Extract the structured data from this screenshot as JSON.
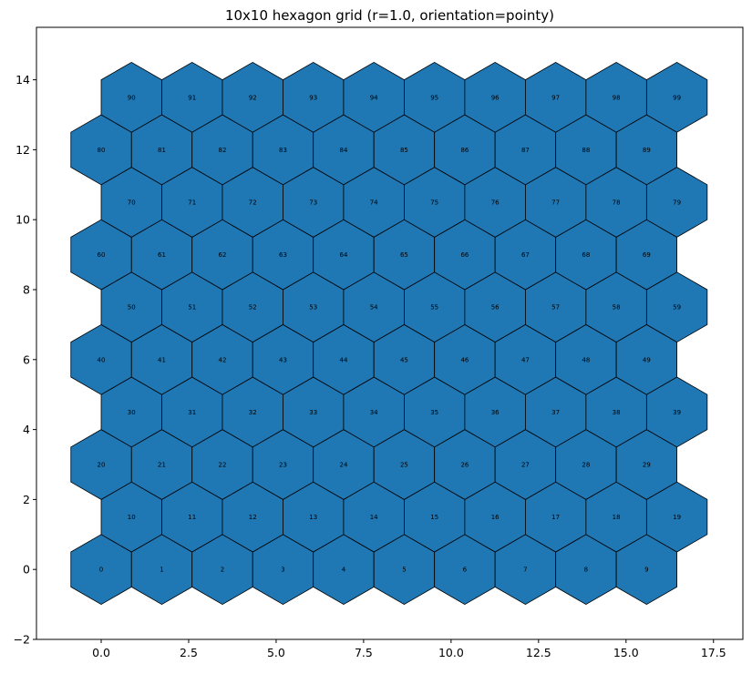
{
  "chart_data": {
    "type": "scatter",
    "title": "10x10 hexagon grid (r=1.0, orientation=pointy)",
    "xlabel": "",
    "ylabel": "",
    "xlim": [
      -1.85,
      18.34
    ],
    "ylim": [
      -2,
      15.5
    ],
    "xticks": [
      0.0,
      2.5,
      5.0,
      7.5,
      10.0,
      12.5,
      15.0,
      17.5
    ],
    "xtick_labels": [
      "0.0",
      "2.5",
      "5.0",
      "7.5",
      "10.0",
      "12.5",
      "15.0",
      "17.5"
    ],
    "yticks": [
      -2,
      0,
      2,
      4,
      6,
      8,
      10,
      12,
      14
    ],
    "ytick_labels": [
      "−2",
      "0",
      "2",
      "4",
      "6",
      "8",
      "10",
      "12",
      "14"
    ],
    "grid": false,
    "hex_grid": {
      "rows": 10,
      "cols": 10,
      "radius": 1.0,
      "orientation": "pointy",
      "fill_color": "#1f77b4",
      "edge_color": "#000000"
    },
    "cells": [
      {
        "id": "0",
        "x": 0.0,
        "y": 0.0
      },
      {
        "id": "1",
        "x": 1.732,
        "y": 0.0
      },
      {
        "id": "2",
        "x": 3.464,
        "y": 0.0
      },
      {
        "id": "3",
        "x": 5.196,
        "y": 0.0
      },
      {
        "id": "4",
        "x": 6.928,
        "y": 0.0
      },
      {
        "id": "5",
        "x": 8.66,
        "y": 0.0
      },
      {
        "id": "6",
        "x": 10.392,
        "y": 0.0
      },
      {
        "id": "7",
        "x": 12.124,
        "y": 0.0
      },
      {
        "id": "8",
        "x": 13.856,
        "y": 0.0
      },
      {
        "id": "9",
        "x": 15.588,
        "y": 0.0
      },
      {
        "id": "10",
        "x": 0.866,
        "y": 1.5
      },
      {
        "id": "11",
        "x": 2.598,
        "y": 1.5
      },
      {
        "id": "12",
        "x": 4.33,
        "y": 1.5
      },
      {
        "id": "13",
        "x": 6.062,
        "y": 1.5
      },
      {
        "id": "14",
        "x": 7.794,
        "y": 1.5
      },
      {
        "id": "15",
        "x": 9.526,
        "y": 1.5
      },
      {
        "id": "16",
        "x": 11.258,
        "y": 1.5
      },
      {
        "id": "17",
        "x": 12.99,
        "y": 1.5
      },
      {
        "id": "18",
        "x": 14.722,
        "y": 1.5
      },
      {
        "id": "19",
        "x": 16.454,
        "y": 1.5
      },
      {
        "id": "20",
        "x": 0.0,
        "y": 3.0
      },
      {
        "id": "21",
        "x": 1.732,
        "y": 3.0
      },
      {
        "id": "22",
        "x": 3.464,
        "y": 3.0
      },
      {
        "id": "23",
        "x": 5.196,
        "y": 3.0
      },
      {
        "id": "24",
        "x": 6.928,
        "y": 3.0
      },
      {
        "id": "25",
        "x": 8.66,
        "y": 3.0
      },
      {
        "id": "26",
        "x": 10.392,
        "y": 3.0
      },
      {
        "id": "27",
        "x": 12.124,
        "y": 3.0
      },
      {
        "id": "28",
        "x": 13.856,
        "y": 3.0
      },
      {
        "id": "29",
        "x": 15.588,
        "y": 3.0
      },
      {
        "id": "30",
        "x": 0.866,
        "y": 4.5
      },
      {
        "id": "31",
        "x": 2.598,
        "y": 4.5
      },
      {
        "id": "32",
        "x": 4.33,
        "y": 4.5
      },
      {
        "id": "33",
        "x": 6.062,
        "y": 4.5
      },
      {
        "id": "34",
        "x": 7.794,
        "y": 4.5
      },
      {
        "id": "35",
        "x": 9.526,
        "y": 4.5
      },
      {
        "id": "36",
        "x": 11.258,
        "y": 4.5
      },
      {
        "id": "37",
        "x": 12.99,
        "y": 4.5
      },
      {
        "id": "38",
        "x": 14.722,
        "y": 4.5
      },
      {
        "id": "39",
        "x": 16.454,
        "y": 4.5
      },
      {
        "id": "40",
        "x": 0.0,
        "y": 6.0
      },
      {
        "id": "41",
        "x": 1.732,
        "y": 6.0
      },
      {
        "id": "42",
        "x": 3.464,
        "y": 6.0
      },
      {
        "id": "43",
        "x": 5.196,
        "y": 6.0
      },
      {
        "id": "44",
        "x": 6.928,
        "y": 6.0
      },
      {
        "id": "45",
        "x": 8.66,
        "y": 6.0
      },
      {
        "id": "46",
        "x": 10.392,
        "y": 6.0
      },
      {
        "id": "47",
        "x": 12.124,
        "y": 6.0
      },
      {
        "id": "48",
        "x": 13.856,
        "y": 6.0
      },
      {
        "id": "49",
        "x": 15.588,
        "y": 6.0
      },
      {
        "id": "50",
        "x": 0.866,
        "y": 7.5
      },
      {
        "id": "51",
        "x": 2.598,
        "y": 7.5
      },
      {
        "id": "52",
        "x": 4.33,
        "y": 7.5
      },
      {
        "id": "53",
        "x": 6.062,
        "y": 7.5
      },
      {
        "id": "54",
        "x": 7.794,
        "y": 7.5
      },
      {
        "id": "55",
        "x": 9.526,
        "y": 7.5
      },
      {
        "id": "56",
        "x": 11.258,
        "y": 7.5
      },
      {
        "id": "57",
        "x": 12.99,
        "y": 7.5
      },
      {
        "id": "58",
        "x": 14.722,
        "y": 7.5
      },
      {
        "id": "59",
        "x": 16.454,
        "y": 7.5
      },
      {
        "id": "60",
        "x": 0.0,
        "y": 9.0
      },
      {
        "id": "61",
        "x": 1.732,
        "y": 9.0
      },
      {
        "id": "62",
        "x": 3.464,
        "y": 9.0
      },
      {
        "id": "63",
        "x": 5.196,
        "y": 9.0
      },
      {
        "id": "64",
        "x": 6.928,
        "y": 9.0
      },
      {
        "id": "65",
        "x": 8.66,
        "y": 9.0
      },
      {
        "id": "66",
        "x": 10.392,
        "y": 9.0
      },
      {
        "id": "67",
        "x": 12.124,
        "y": 9.0
      },
      {
        "id": "68",
        "x": 13.856,
        "y": 9.0
      },
      {
        "id": "69",
        "x": 15.588,
        "y": 9.0
      },
      {
        "id": "70",
        "x": 0.866,
        "y": 10.5
      },
      {
        "id": "71",
        "x": 2.598,
        "y": 10.5
      },
      {
        "id": "72",
        "x": 4.33,
        "y": 10.5
      },
      {
        "id": "73",
        "x": 6.062,
        "y": 10.5
      },
      {
        "id": "74",
        "x": 7.794,
        "y": 10.5
      },
      {
        "id": "75",
        "x": 9.526,
        "y": 10.5
      },
      {
        "id": "76",
        "x": 11.258,
        "y": 10.5
      },
      {
        "id": "77",
        "x": 12.99,
        "y": 10.5
      },
      {
        "id": "78",
        "x": 14.722,
        "y": 10.5
      },
      {
        "id": "79",
        "x": 16.454,
        "y": 10.5
      },
      {
        "id": "80",
        "x": 0.0,
        "y": 12.0
      },
      {
        "id": "81",
        "x": 1.732,
        "y": 12.0
      },
      {
        "id": "82",
        "x": 3.464,
        "y": 12.0
      },
      {
        "id": "83",
        "x": 5.196,
        "y": 12.0
      },
      {
        "id": "84",
        "x": 6.928,
        "y": 12.0
      },
      {
        "id": "85",
        "x": 8.66,
        "y": 12.0
      },
      {
        "id": "86",
        "x": 10.392,
        "y": 12.0
      },
      {
        "id": "87",
        "x": 12.124,
        "y": 12.0
      },
      {
        "id": "88",
        "x": 13.856,
        "y": 12.0
      },
      {
        "id": "89",
        "x": 15.588,
        "y": 12.0
      },
      {
        "id": "90",
        "x": 0.866,
        "y": 13.5
      },
      {
        "id": "91",
        "x": 2.598,
        "y": 13.5
      },
      {
        "id": "92",
        "x": 4.33,
        "y": 13.5
      },
      {
        "id": "93",
        "x": 6.062,
        "y": 13.5
      },
      {
        "id": "94",
        "x": 7.794,
        "y": 13.5
      },
      {
        "id": "95",
        "x": 9.526,
        "y": 13.5
      },
      {
        "id": "96",
        "x": 11.258,
        "y": 13.5
      },
      {
        "id": "97",
        "x": 12.99,
        "y": 13.5
      },
      {
        "id": "98",
        "x": 14.722,
        "y": 13.5
      },
      {
        "id": "99",
        "x": 16.454,
        "y": 13.5
      }
    ]
  }
}
